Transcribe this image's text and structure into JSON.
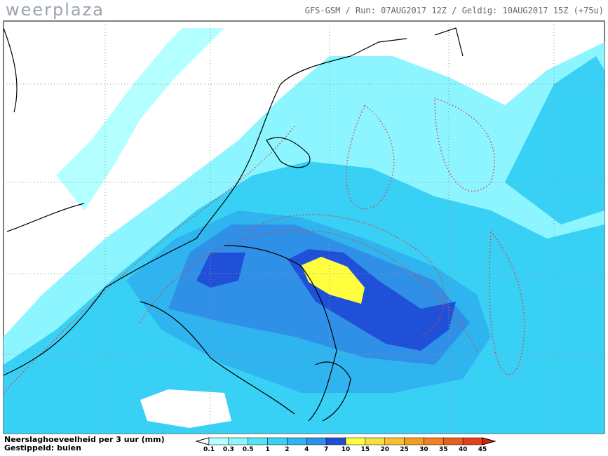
{
  "header": {
    "brand": "weerplaza",
    "info": "GFS-GSM / Run: 07AUG2017 12Z / Geldig: 10AUG2017 15Z (+75u)"
  },
  "footer": {
    "line1": "Neerslaghoeveelheid per 3 uur (mm)",
    "line2": "Gestippeld: buien"
  },
  "legend": {
    "labels": [
      0.1,
      0.3,
      0.5,
      1,
      2,
      4,
      7,
      10,
      15,
      20,
      25,
      30,
      35,
      40,
      45
    ],
    "colors": [
      "#ffffff",
      "#b4ffff",
      "#8cf5ff",
      "#50e6f5",
      "#38d0f5",
      "#30b4f0",
      "#3090e8",
      "#2050d8",
      "#ffff40",
      "#f5e040",
      "#f8c030",
      "#f0a020",
      "#f08020",
      "#e86020",
      "#e04020",
      "#d82010"
    ]
  }
}
